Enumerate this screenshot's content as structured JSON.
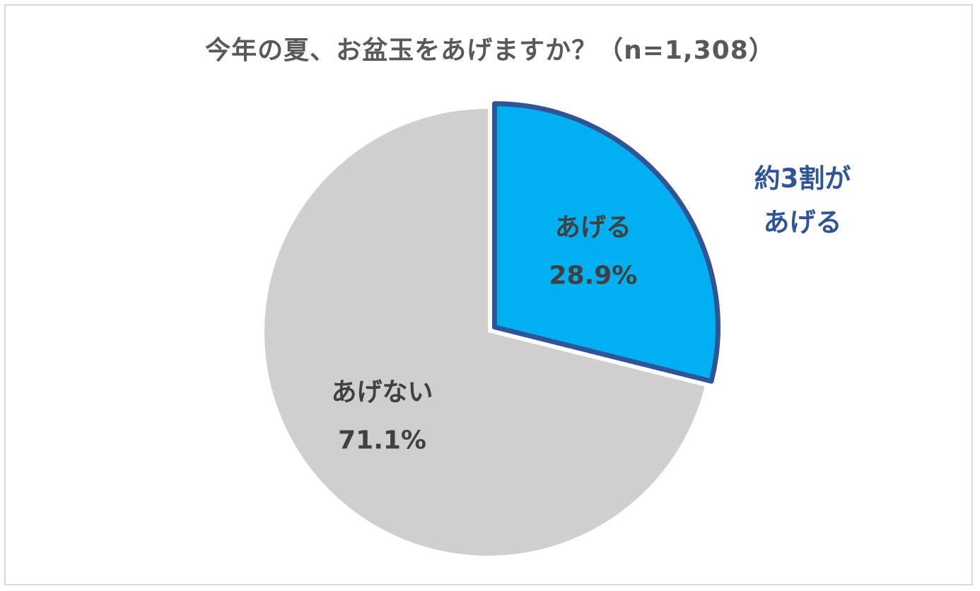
{
  "chart_data": {
    "type": "pie",
    "title": "今年の夏、お盆玉をあげますか？（n=1,308）",
    "slices": [
      {
        "label": "あげる",
        "value": 28.9,
        "value_text": "28.9%",
        "color": "#00b0f0",
        "border_color": "#2f5597",
        "exploded": true
      },
      {
        "label": "あげない",
        "value": 71.1,
        "value_text": "71.1%",
        "color": "#d0cece",
        "border_color": "#d0cece",
        "exploded": false
      }
    ],
    "annotations": [
      {
        "lines": [
          "約3割が",
          "あげる"
        ],
        "color": "#2f5597"
      }
    ],
    "start_angle": "12 o'clock, clockwise",
    "legend": "none"
  }
}
